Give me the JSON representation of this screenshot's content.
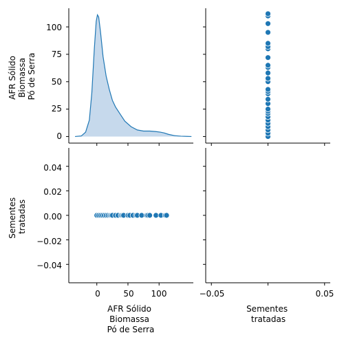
{
  "chart_data": {
    "type": "pairplot",
    "variables": [
      "AFR Sólido\nBiomassa\nPó de Serra",
      "Sementes\ntratadas"
    ],
    "point_color": "#1f77b4",
    "kde_fill": "#c6d9ec",
    "panels": [
      {
        "position": "top-left",
        "type": "area",
        "description_kind": "kde",
        "x": [
          -35,
          -25,
          -18,
          -12,
          -8,
          -4,
          -1,
          1,
          3,
          6,
          10,
          15,
          20,
          25,
          30,
          38,
          45,
          55,
          65,
          75,
          85,
          95,
          102,
          108,
          115,
          125,
          135,
          145,
          152
        ],
        "y": [
          0,
          0.5,
          4,
          15,
          40,
          80,
          105,
          111,
          109,
          95,
          73,
          55,
          43,
          33,
          27,
          20,
          14,
          9,
          6,
          5,
          5,
          4.5,
          4,
          3.3,
          2,
          0.8,
          0.3,
          0.1,
          0
        ],
        "xlim": [
          -45,
          155
        ],
        "ylim": [
          -6,
          117
        ],
        "yticks": [
          0,
          25,
          50,
          75,
          100
        ],
        "ylabel": "AFR Sólido\nBiomassa\nPó de Serra"
      },
      {
        "position": "top-right",
        "type": "scatter",
        "x": [
          0,
          0,
          0,
          0,
          0,
          0,
          0,
          0,
          0,
          0,
          0,
          0,
          0,
          0,
          0,
          0,
          0,
          0,
          0,
          0,
          0,
          0,
          0,
          0,
          0,
          0,
          0,
          0
        ],
        "y": [
          0,
          3,
          6,
          9,
          12,
          15,
          18,
          21,
          23,
          25,
          30,
          34,
          39,
          41,
          43,
          50,
          53,
          58,
          63,
          65,
          72,
          80,
          82,
          85,
          95,
          103,
          110,
          112
        ],
        "xlim": [
          -0.055,
          0.055
        ],
        "ylim": [
          -6,
          117
        ]
      },
      {
        "position": "bottom-left",
        "type": "scatter",
        "x": [
          0,
          3,
          6,
          9,
          12,
          15,
          18,
          21,
          23,
          25,
          30,
          34,
          39,
          41,
          43,
          50,
          53,
          58,
          63,
          65,
          72,
          80,
          82,
          85,
          95,
          103,
          110,
          112
        ],
        "y": [
          0,
          0,
          0,
          0,
          0,
          0,
          0,
          0,
          0,
          0,
          0,
          0,
          0,
          0,
          0,
          0,
          0,
          0,
          0,
          0,
          0,
          0,
          0,
          0,
          0,
          0,
          0,
          0
        ],
        "xlim": [
          -45,
          155
        ],
        "ylim": [
          -0.055,
          0.055
        ],
        "xticks": [
          0,
          50,
          100
        ],
        "yticks": [
          -0.04,
          -0.02,
          0.0,
          0.02,
          0.04
        ],
        "ylabel": "Sementes\ntratadas",
        "xlabel": "AFR Sólido\nBiomassa\nPó de Serra"
      },
      {
        "position": "bottom-right",
        "type": "empty",
        "xlim": [
          -0.055,
          0.055
        ],
        "ylim": [
          -0.055,
          0.055
        ],
        "xticks": [
          -0.05,
          0.05
        ],
        "xlabel": "Sementes\ntratadas"
      }
    ],
    "tick_labels": {
      "top_left_y": [
        "0",
        "25",
        "50",
        "75",
        "100"
      ],
      "bottom_left_y": [
        "−0.04",
        "−0.02",
        "0.00",
        "0.02",
        "0.04"
      ],
      "bottom_left_x": [
        "0",
        "50",
        "100"
      ],
      "bottom_right_x": [
        "−0.05",
        "0.05"
      ]
    },
    "axis_titles": {
      "row1_y": [
        "AFR Sólido",
        "Biomassa",
        "Pó de Serra"
      ],
      "row2_y": [
        "Sementes",
        "tratadas"
      ],
      "col1_x": [
        "AFR Sólido",
        "Biomassa",
        "Pó de Serra"
      ],
      "col2_x": [
        "Sementes",
        "tratadas"
      ]
    }
  }
}
